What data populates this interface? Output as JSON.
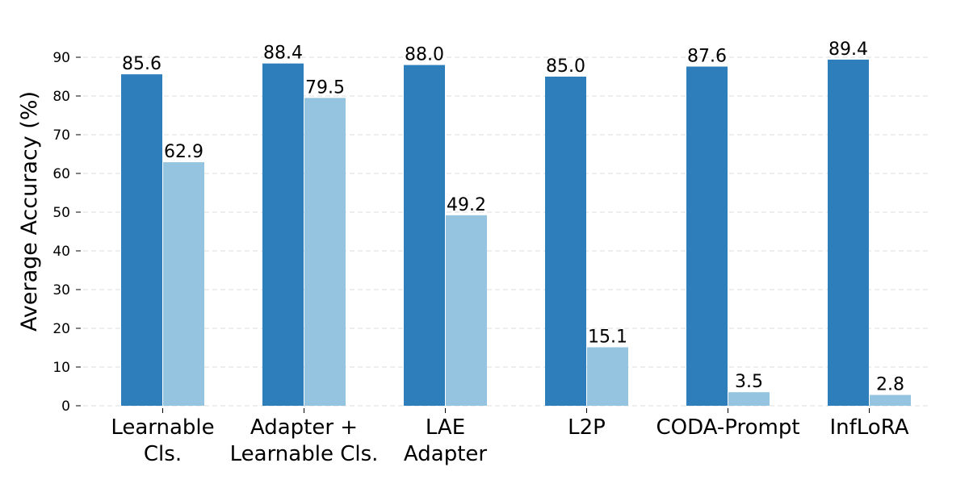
{
  "chart_data": {
    "type": "bar",
    "title": "",
    "xlabel": "",
    "ylabel": "Average Accuracy (%)",
    "ylim": [
      0,
      93
    ],
    "yticks": [
      "0",
      "10",
      "20",
      "30",
      "40",
      "50",
      "60",
      "70",
      "80",
      "90"
    ],
    "grid": true,
    "categories": [
      [
        "Learnable",
        "Cls."
      ],
      [
        "Adapter +",
        "Learnable Cls."
      ],
      [
        "LAE",
        "Adapter"
      ],
      [
        "L2P"
      ],
      [
        "CODA-Prompt"
      ],
      [
        "InfLoRA"
      ]
    ],
    "series": [
      {
        "name": "series-1",
        "color": "#2e7ebc",
        "values": [
          85.6,
          88.4,
          88.0,
          85.0,
          87.6,
          89.4
        ],
        "labels": [
          "85.6",
          "88.4",
          "88.0",
          "85.0",
          "87.6",
          "89.4"
        ]
      },
      {
        "name": "series-2",
        "color": "#94c4df",
        "values": [
          62.9,
          79.5,
          49.2,
          15.1,
          3.5,
          2.8
        ],
        "labels": [
          "62.9",
          "79.5",
          "49.2",
          "15.1",
          "3.5",
          "2.8"
        ]
      }
    ]
  }
}
